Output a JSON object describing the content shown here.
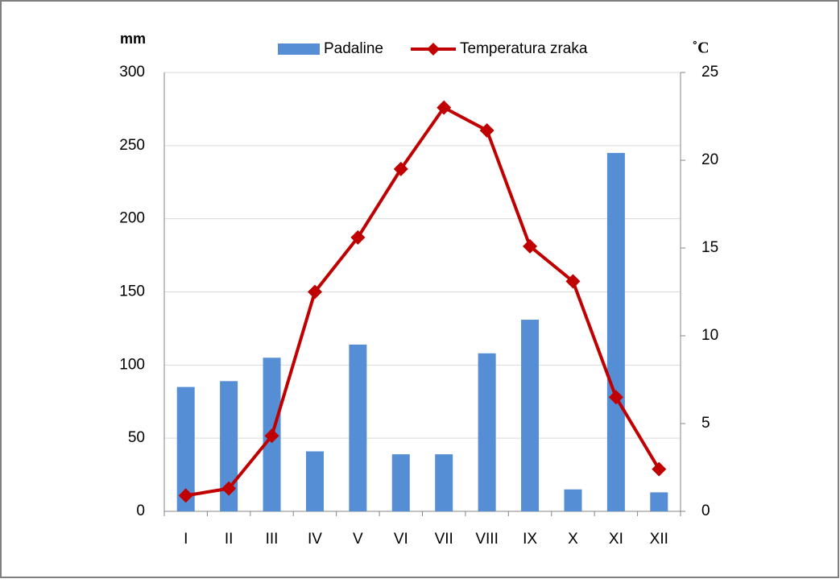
{
  "chart_data": {
    "type": "bar-line",
    "y_label": "mm",
    "y2_label": "˚C",
    "categories": [
      "I",
      "II",
      "III",
      "IV",
      "V",
      "VI",
      "VII",
      "VIII",
      "IX",
      "X",
      "XI",
      "XII"
    ],
    "series": [
      {
        "name": "Padaline",
        "type": "bar",
        "color": "#558ed5",
        "values": [
          85,
          89,
          105,
          41,
          114,
          39,
          39,
          108,
          131,
          15,
          245,
          13
        ]
      },
      {
        "name": "Temperatura zraka",
        "type": "line",
        "axis": "y2",
        "color": "#c00000",
        "values": [
          0.9,
          1.3,
          4.3,
          12.5,
          15.6,
          19.5,
          23.0,
          21.7,
          15.1,
          13.1,
          6.5,
          2.4
        ]
      }
    ],
    "ylim": [
      0,
      300
    ],
    "yticks": [
      0,
      50,
      100,
      150,
      200,
      250,
      300
    ],
    "y2lim": [
      0,
      25
    ],
    "y2ticks": [
      0,
      5,
      10,
      15,
      20,
      25
    ],
    "grid": true,
    "legend": "top"
  }
}
